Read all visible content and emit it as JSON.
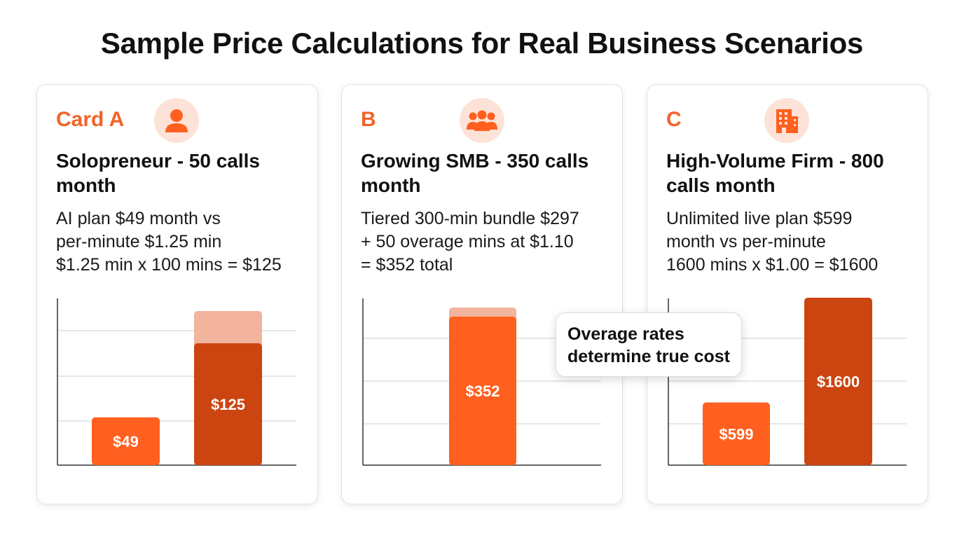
{
  "page": {
    "title": "Sample Price Calculations for Real Business Scenarios"
  },
  "colors": {
    "accent_orange": "#ff5f1f",
    "accent_dark": "#cc4410",
    "accent_light": "#f2b49c",
    "icon_bg": "#fde3d7",
    "label_orange": "#f0642a"
  },
  "cards": [
    {
      "label": "Card A",
      "icon": "person-icon",
      "title_lines": [
        "Solopreneur - 50 calls",
        "month"
      ],
      "desc_lines": [
        "AI plan $49 month vs",
        "per-minute $1.25 min",
        "$1.25 min x 100 mins = $125"
      ]
    },
    {
      "label": "B",
      "icon": "group-icon",
      "title_lines": [
        "Growing SMB - 350 calls",
        "month"
      ],
      "desc_lines": [
        "Tiered 300-min bundle $297",
        "+ 50 overage mins at $1.10",
        "= $352 total"
      ]
    },
    {
      "label": "C",
      "icon": "building-icon",
      "title_lines": [
        "High-Volume Firm - 800",
        "calls month"
      ],
      "desc_lines": [
        "Unlimited live plan $599",
        "month vs per-minute",
        "1600 mins x $1.00 = $1600"
      ]
    }
  ],
  "callout": {
    "lines": [
      "Overage rates",
      "determine true cost"
    ]
  },
  "chart_data": [
    {
      "type": "bar",
      "categories": [
        "",
        ""
      ],
      "values": [
        49,
        125
      ],
      "data_labels": [
        "$49",
        "$125"
      ],
      "bar_colors": [
        "#ff5f1f",
        "#cc4410"
      ],
      "grid": true
    },
    {
      "type": "bar",
      "categories": [
        ""
      ],
      "values": [
        352
      ],
      "data_labels": [
        "$352"
      ],
      "bar_colors": [
        "#ff5f1f"
      ],
      "grid": true
    },
    {
      "type": "bar",
      "categories": [
        "",
        ""
      ],
      "values": [
        599,
        1600
      ],
      "data_labels": [
        "$599",
        "$1600"
      ],
      "bar_colors": [
        "#ff5f1f",
        "#cc4410"
      ],
      "grid": true
    }
  ]
}
